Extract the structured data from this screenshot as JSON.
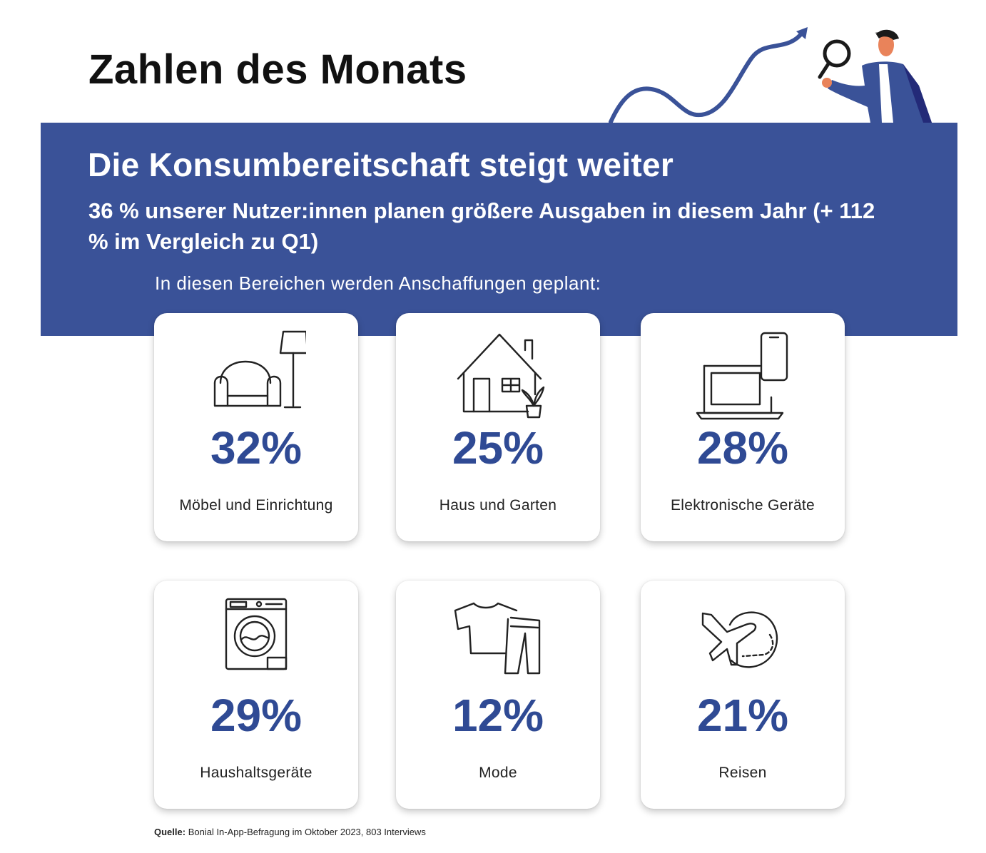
{
  "page": {
    "title": "Zahlen des Monats"
  },
  "banner": {
    "headline": "Die Konsumbereitschaft steigt weiter",
    "subhead": "36 % unserer Nutzer:innen planen größere Ausgaben in diesem Jahr (+ 112 % im Vergleich zu Q1)",
    "intro": "In diesen Bereichen werden Anschaffungen geplant:"
  },
  "cards": [
    {
      "value": "32%",
      "label": "Möbel und Einrichtung",
      "icon": "armchair-lamp-icon"
    },
    {
      "value": "25%",
      "label": "Haus und Garten",
      "icon": "house-plant-icon"
    },
    {
      "value": "28%",
      "label": "Elektronische Geräte",
      "icon": "laptop-phone-icon"
    },
    {
      "value": "29%",
      "label": "Haushaltsgeräte",
      "icon": "washing-machine-icon"
    },
    {
      "value": "12%",
      "label": "Mode",
      "icon": "tshirt-pants-icon"
    },
    {
      "value": "21%",
      "label": "Reisen",
      "icon": "airplane-globe-icon"
    }
  ],
  "source": {
    "prefix": "Quelle:",
    "text": " Bonial In-App-Befragung im Oktober 2023, 803 Interviews"
  },
  "colors": {
    "banner": "#3a5298",
    "accent": "#2f4a94",
    "title": "#111111"
  }
}
